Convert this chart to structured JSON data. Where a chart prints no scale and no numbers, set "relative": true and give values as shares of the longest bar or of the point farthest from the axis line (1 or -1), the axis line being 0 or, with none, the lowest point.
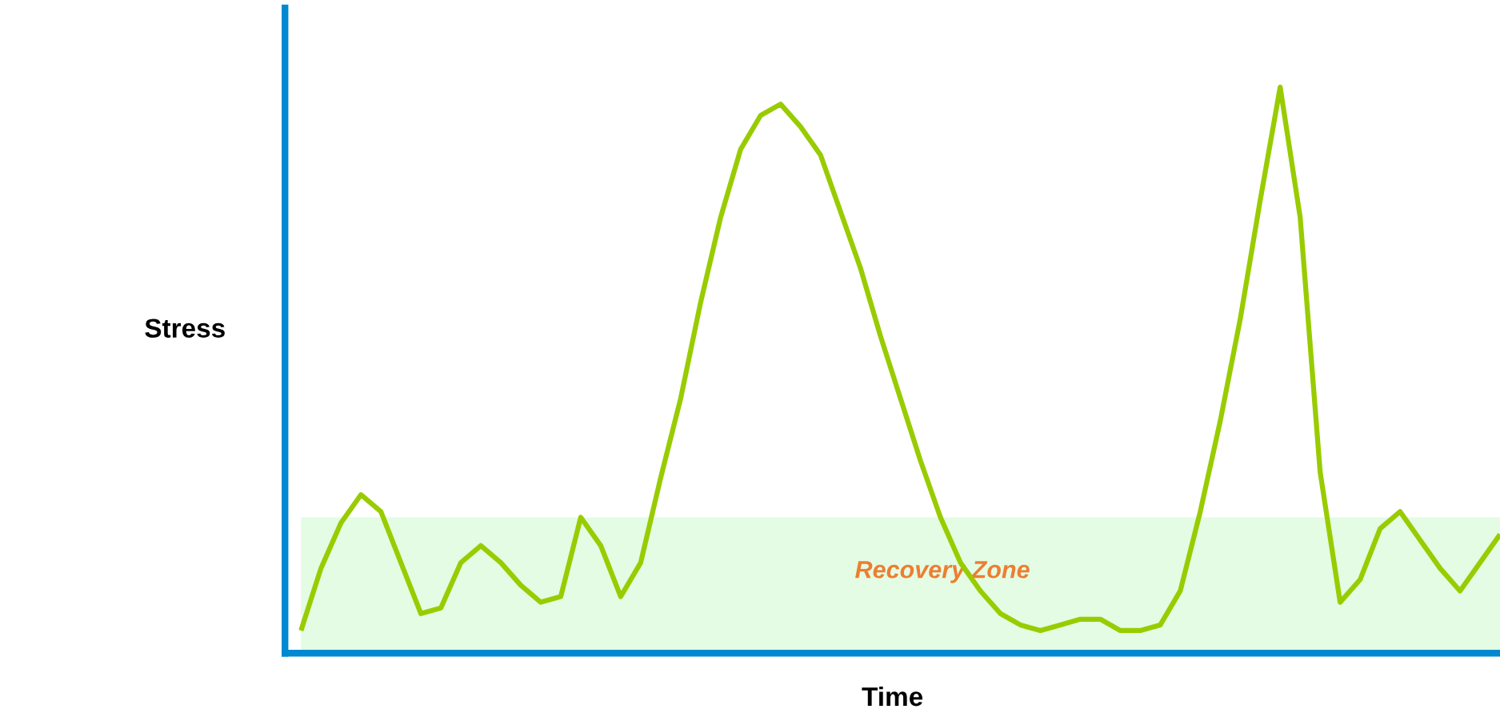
{
  "chart_data": {
    "type": "line",
    "relative": true,
    "xlabel": "Time",
    "ylabel": "Stress",
    "categories": [
      null,
      null,
      null,
      null,
      null,
      null,
      null,
      null,
      null,
      null,
      null,
      null,
      null,
      null,
      null,
      null,
      null,
      null,
      null,
      null,
      null,
      null,
      null,
      null,
      null,
      null,
      null,
      null,
      null,
      null,
      null,
      null,
      null,
      null,
      null,
      null,
      null,
      null,
      null,
      null,
      null,
      null,
      null,
      null,
      null,
      null,
      null,
      null,
      null,
      null,
      null,
      null,
      null,
      null,
      null,
      null,
      null,
      null,
      null,
      null,
      null
    ],
    "series": [
      {
        "color": "#99cc00",
        "values": [
          0.04,
          0.15,
          0.23,
          0.28,
          0.25,
          0.16,
          0.07,
          0.08,
          0.16,
          0.19,
          0.16,
          0.12,
          0.09,
          0.1,
          0.24,
          0.19,
          0.1,
          0.16,
          0.31,
          0.45,
          0.62,
          0.77,
          0.89,
          0.95,
          0.97,
          0.93,
          0.88,
          0.78,
          0.68,
          0.56,
          0.45,
          0.34,
          0.24,
          0.16,
          0.11,
          0.07,
          0.05,
          0.04,
          0.05,
          0.06,
          0.06,
          0.04,
          0.04,
          0.05,
          0.11,
          0.25,
          0.41,
          0.59,
          0.8,
          1.0,
          0.77,
          0.32,
          0.09,
          0.13,
          0.22,
          0.25,
          0.2,
          0.15,
          0.11,
          0.16,
          0.21
        ]
      }
    ],
    "bands": [
      {
        "axis": "y",
        "from": 0,
        "to": 0.24,
        "label": "Recovery Zone",
        "color": "#e3fce3"
      }
    ],
    "marker": "none",
    "line_style": "solid"
  }
}
